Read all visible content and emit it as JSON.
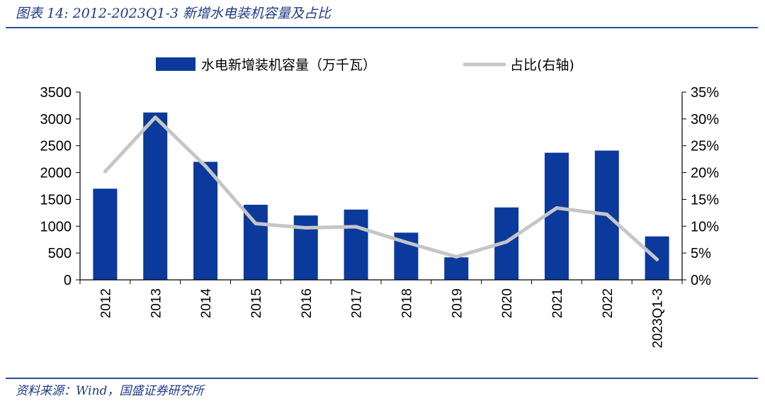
{
  "header": {
    "title": "图表 14:  2012-2023Q1-3 新增水电装机容量及占比"
  },
  "footer": {
    "source": "资料来源：Wind，国盛证券研究所"
  },
  "colors": {
    "bar": "#0b3a9c",
    "line": "#c6c6c6",
    "brand": "#1f3b86"
  },
  "chart_data": {
    "type": "bar",
    "title": "",
    "categories": [
      "2012",
      "2013",
      "2014",
      "2015",
      "2016",
      "2017",
      "2018",
      "2019",
      "2020",
      "2021",
      "2022",
      "2023Q1-3"
    ],
    "series": [
      {
        "name": "水电新增装机容量（万千瓦）",
        "type": "bar",
        "axis": "left",
        "values": [
          1700,
          3120,
          2200,
          1400,
          1200,
          1310,
          880,
          420,
          1350,
          2370,
          2410,
          810
        ]
      },
      {
        "name": "占比(右轴)",
        "type": "line",
        "axis": "right",
        "values": [
          20.2,
          30.3,
          21.2,
          10.5,
          9.7,
          9.9,
          7.0,
          4.3,
          7.1,
          13.4,
          12.2,
          3.8
        ]
      }
    ],
    "y_left": {
      "ylim": [
        0,
        3500
      ],
      "ticks": [
        "0",
        "500",
        "1000",
        "1500",
        "2000",
        "2500",
        "3000",
        "3500"
      ]
    },
    "y_right": {
      "ylim": [
        0,
        35
      ],
      "ticks": [
        "0%",
        "5%",
        "10%",
        "15%",
        "20%",
        "25%",
        "30%",
        "35%"
      ]
    },
    "legend": "top",
    "grid": false
  }
}
